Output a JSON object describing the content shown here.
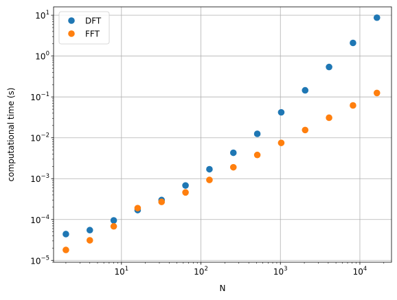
{
  "chart_data": {
    "type": "scatter",
    "xlabel": "N",
    "ylabel": "computational time (s)",
    "xscale": "log",
    "yscale": "log",
    "xlim": [
      1.4,
      25000
    ],
    "ylim": [
      9e-06,
      16
    ],
    "grid": true,
    "legend_position": "top-left",
    "x_ticks": [
      {
        "value": 10,
        "base": "10",
        "exp": "1"
      },
      {
        "value": 100,
        "base": "10",
        "exp": "2"
      },
      {
        "value": 1000,
        "base": "10",
        "exp": "3"
      },
      {
        "value": 10000,
        "base": "10",
        "exp": "4"
      }
    ],
    "y_ticks": [
      {
        "value": 1e-05,
        "base": "10",
        "exp": "−5"
      },
      {
        "value": 0.0001,
        "base": "10",
        "exp": "−4"
      },
      {
        "value": 0.001,
        "base": "10",
        "exp": "−3"
      },
      {
        "value": 0.01,
        "base": "10",
        "exp": "−2"
      },
      {
        "value": 0.1,
        "base": "10",
        "exp": "−1"
      },
      {
        "value": 1,
        "base": "10",
        "exp": "0"
      },
      {
        "value": 10,
        "base": "10",
        "exp": "1"
      }
    ],
    "x": [
      2,
      4,
      8,
      16,
      32,
      64,
      128,
      256,
      512,
      1024,
      2048,
      4096,
      8192,
      16384
    ],
    "series": [
      {
        "name": "DFT",
        "color": "#1f77b4",
        "values": [
          4.4e-05,
          5.5e-05,
          9.5e-05,
          0.00017,
          0.0003,
          0.00068,
          0.0017,
          0.0043,
          0.0125,
          0.042,
          0.145,
          0.54,
          2.1,
          8.7
        ]
      },
      {
        "name": "FFT",
        "color": "#ff7f0e",
        "values": [
          1.8e-05,
          3.1e-05,
          6.8e-05,
          0.00019,
          0.00027,
          0.00046,
          0.00093,
          0.0019,
          0.0038,
          0.0075,
          0.0155,
          0.031,
          0.062,
          0.125
        ]
      }
    ]
  }
}
